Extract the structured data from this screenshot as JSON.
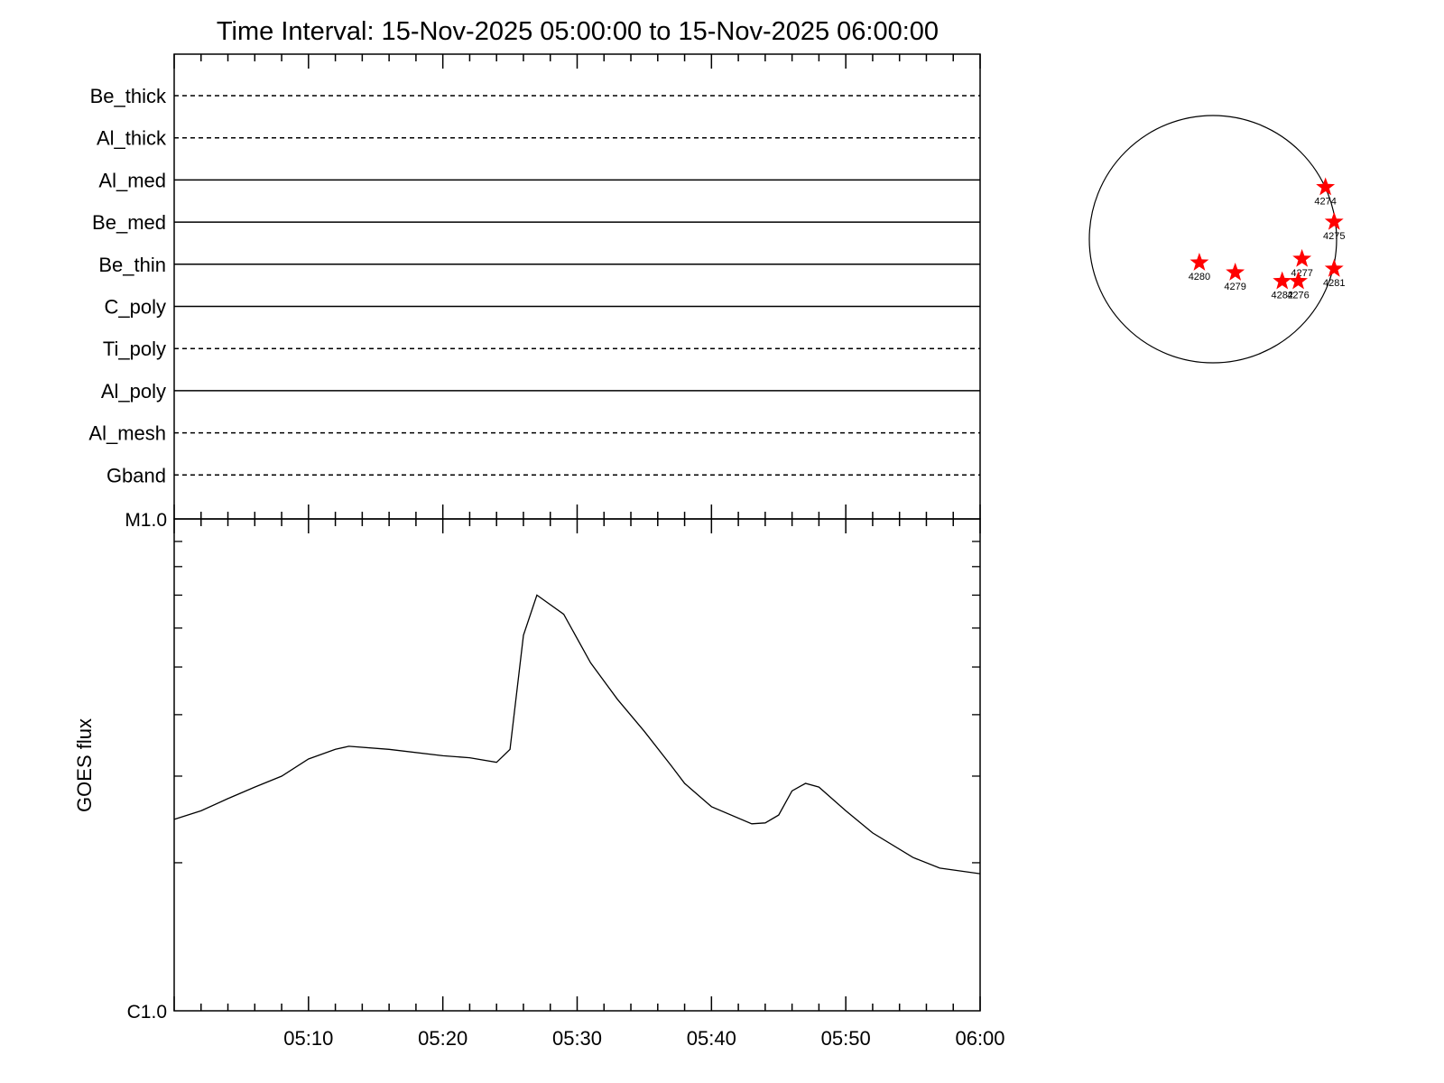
{
  "title": "Time Interval: 15-Nov-2025 05:00:00 to 15-Nov-2025 06:00:00",
  "chart_data": [
    {
      "type": "line",
      "panel": "filter-timeline",
      "categories": [
        "Be_thick",
        "Al_thick",
        "Al_med",
        "Be_med",
        "Be_thin",
        "C_poly",
        "Ti_poly",
        "Al_poly",
        "Al_mesh",
        "Gband"
      ],
      "line_styles": [
        "dashed",
        "dashed",
        "solid",
        "solid",
        "solid",
        "solid",
        "dashed",
        "solid",
        "dashed",
        "dashed"
      ],
      "xlim": [
        "05:00",
        "06:00"
      ]
    },
    {
      "type": "line",
      "panel": "goes-flux",
      "ylabel": "GOES flux",
      "y_scale": "log",
      "ylim": [
        1e-06,
        1e-05
      ],
      "y_tick_labels": [
        "C1.0",
        "M1.0"
      ],
      "xlim": [
        "05:00",
        "06:00"
      ],
      "x_tick_labels": [
        "05:10",
        "05:20",
        "05:30",
        "05:40",
        "05:50",
        "06:00"
      ],
      "series": [
        {
          "x": [
            "05:00",
            "05:02",
            "05:04",
            "05:06",
            "05:08",
            "05:10",
            "05:12",
            "05:13",
            "05:16",
            "05:20",
            "05:22",
            "05:24",
            "05:25",
            "05:26",
            "05:27",
            "05:29",
            "05:31",
            "05:33",
            "05:35",
            "05:37",
            "05:38",
            "05:40",
            "05:43",
            "05:44",
            "05:45",
            "05:46",
            "05:47",
            "05:48",
            "05:50",
            "05:52",
            "05:55",
            "05:57",
            "06:00"
          ],
          "values": [
            2.45e-06,
            2.55e-06,
            2.7e-06,
            2.85e-06,
            3e-06,
            3.25e-06,
            3.4e-06,
            3.45e-06,
            3.4e-06,
            3.3e-06,
            3.27e-06,
            3.2e-06,
            3.4e-06,
            5.8e-06,
            7e-06,
            6.4e-06,
            5.1e-06,
            4.3e-06,
            3.7e-06,
            3.15e-06,
            2.9e-06,
            2.6e-06,
            2.4e-06,
            2.41e-06,
            2.5e-06,
            2.8e-06,
            2.9e-06,
            2.85e-06,
            2.55e-06,
            2.3e-06,
            2.05e-06,
            1.95e-06,
            1.9e-06
          ]
        }
      ]
    },
    {
      "type": "scatter",
      "panel": "solar-disk",
      "points": [
        {
          "label": "4274",
          "x": 0.91,
          "y": 0.42
        },
        {
          "label": "4275",
          "x": 0.98,
          "y": 0.14
        },
        {
          "label": "4277",
          "x": 0.72,
          "y": -0.16
        },
        {
          "label": "4281",
          "x": 0.98,
          "y": -0.24
        },
        {
          "label": "4276",
          "x": 0.69,
          "y": -0.34
        },
        {
          "label": "4282",
          "x": 0.56,
          "y": -0.34
        },
        {
          "label": "4279",
          "x": 0.18,
          "y": -0.27
        },
        {
          "label": "4280",
          "x": -0.11,
          "y": -0.19
        }
      ]
    }
  ],
  "colors": {
    "axis": "#000000",
    "marker": "#ff0000"
  }
}
